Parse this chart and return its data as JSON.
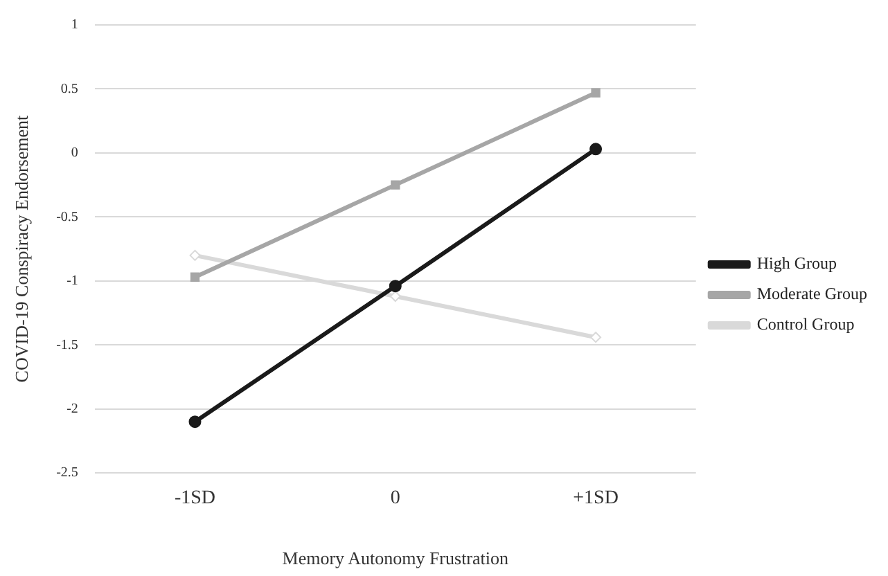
{
  "chart_data": {
    "type": "line",
    "xlabel": "Memory Autonomy Frustration",
    "ylabel": "COVID-19 Conspiracy Endorsement",
    "categories": [
      "-1SD",
      "0",
      "+1SD"
    ],
    "series": [
      {
        "name": "High Group",
        "color": "#1a1a1a",
        "marker": "circle",
        "values": [
          -2.1,
          -1.04,
          0.03
        ]
      },
      {
        "name": "Moderate Group",
        "color": "#a6a6a6",
        "marker": "square",
        "values": [
          -0.97,
          -0.25,
          0.47
        ]
      },
      {
        "name": "Control Group",
        "color": "#d9d9d9",
        "marker": "diamond",
        "values": [
          -0.8,
          -1.12,
          -1.44
        ]
      }
    ],
    "ylim": [
      -2.5,
      1
    ],
    "yticks": [
      -2.5,
      -2,
      -1.5,
      -1,
      -0.5,
      0,
      0.5,
      1
    ],
    "grid": "y",
    "legend": "right",
    "line_style": "solid"
  }
}
